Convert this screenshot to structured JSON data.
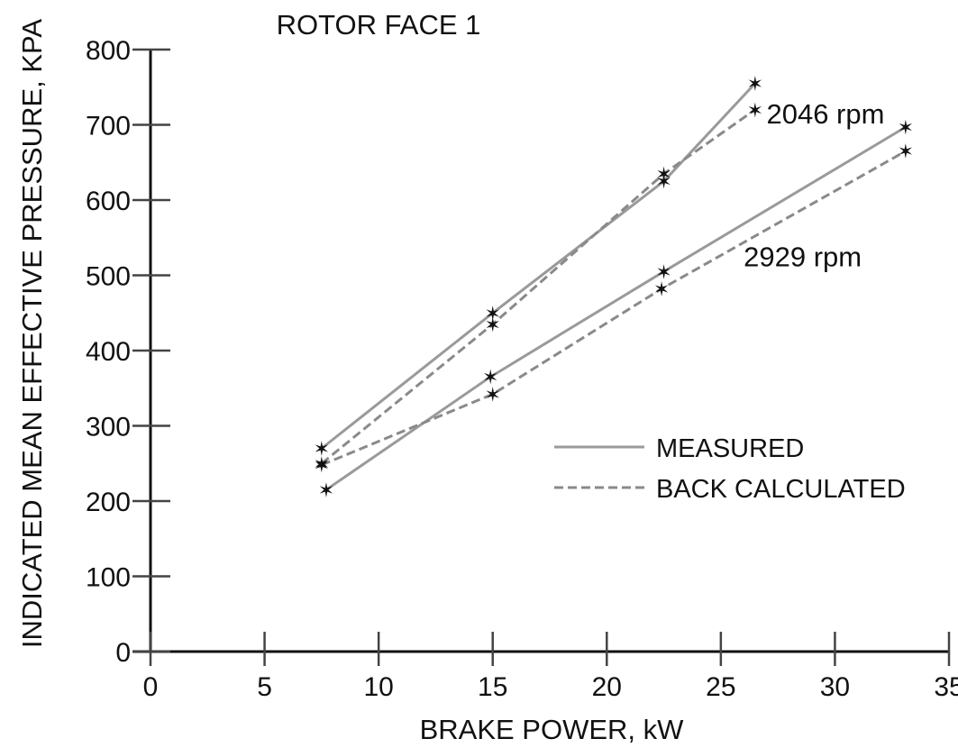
{
  "chart_data": {
    "type": "line",
    "title": "ROTOR FACE 1",
    "xlabel": "BRAKE POWER, kW",
    "ylabel": "INDICATED MEAN EFFECTIVE PRESSURE, KPA",
    "xlim": [
      0,
      35
    ],
    "ylim": [
      0,
      800
    ],
    "xticks": [
      0,
      5,
      10,
      15,
      20,
      25,
      30,
      35
    ],
    "yticks": [
      0,
      100,
      200,
      300,
      400,
      500,
      600,
      700,
      800
    ],
    "legend": {
      "placement": "center-right",
      "entries": [
        {
          "label": "MEASURED",
          "style": "solid"
        },
        {
          "label": "BACK CALCULATED",
          "style": "dashed"
        }
      ]
    },
    "annotations": [
      {
        "text": "2046 rpm",
        "x": 27,
        "y": 715
      },
      {
        "text": "2929 rpm",
        "x": 26,
        "y": 525
      }
    ],
    "series": [
      {
        "rpm": "2046 rpm",
        "kind": "measured",
        "x": [
          7.5,
          15,
          22.5,
          26.5
        ],
        "y": [
          270,
          450,
          625,
          755
        ]
      },
      {
        "rpm": "2046 rpm",
        "kind": "back calculated",
        "x": [
          7.5,
          15,
          22.5,
          26.5
        ],
        "y": [
          250,
          435,
          635,
          720
        ]
      },
      {
        "rpm": "2929 rpm",
        "kind": "measured",
        "x": [
          7.7,
          14.9,
          22.5,
          33.1
        ],
        "y": [
          215,
          365,
          505,
          697
        ]
      },
      {
        "rpm": "2929 rpm",
        "kind": "back calculated",
        "x": [
          7.5,
          15,
          22.4,
          33.1
        ],
        "y": [
          248,
          342,
          482,
          665
        ]
      }
    ],
    "colors": {
      "ink": "#111111",
      "measured_line": "#9a9a9a",
      "back_line": "#8a8a8a"
    }
  }
}
